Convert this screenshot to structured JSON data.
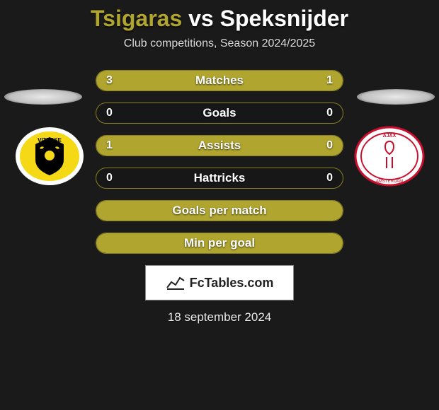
{
  "title": {
    "left": "Tsigaras",
    "vs": "vs",
    "right": "Speksnijder"
  },
  "subtitle": "Club competitions, Season 2024/2025",
  "bar_color": "#b0a52e",
  "border_color": "#8a7f20",
  "bg_color": "#1a1a1a",
  "bars": [
    {
      "label": "Matches",
      "left_val": "3",
      "right_val": "1",
      "left_pct": 75,
      "right_pct": 25
    },
    {
      "label": "Goals",
      "left_val": "0",
      "right_val": "0",
      "left_pct": 0,
      "right_pct": 0
    },
    {
      "label": "Assists",
      "left_val": "1",
      "right_val": "0",
      "left_pct": 100,
      "right_pct": 0
    },
    {
      "label": "Hattricks",
      "left_val": "0",
      "right_val": "0",
      "left_pct": 0,
      "right_pct": 0
    },
    {
      "label": "Goals per match",
      "left_val": "",
      "right_val": "",
      "full": true
    },
    {
      "label": "Min per goal",
      "left_val": "",
      "right_val": "",
      "full": true
    }
  ],
  "brand": "FcTables.com",
  "date": "18 september 2024",
  "clubs": {
    "left": "Vitesse",
    "right": "Ajax"
  }
}
